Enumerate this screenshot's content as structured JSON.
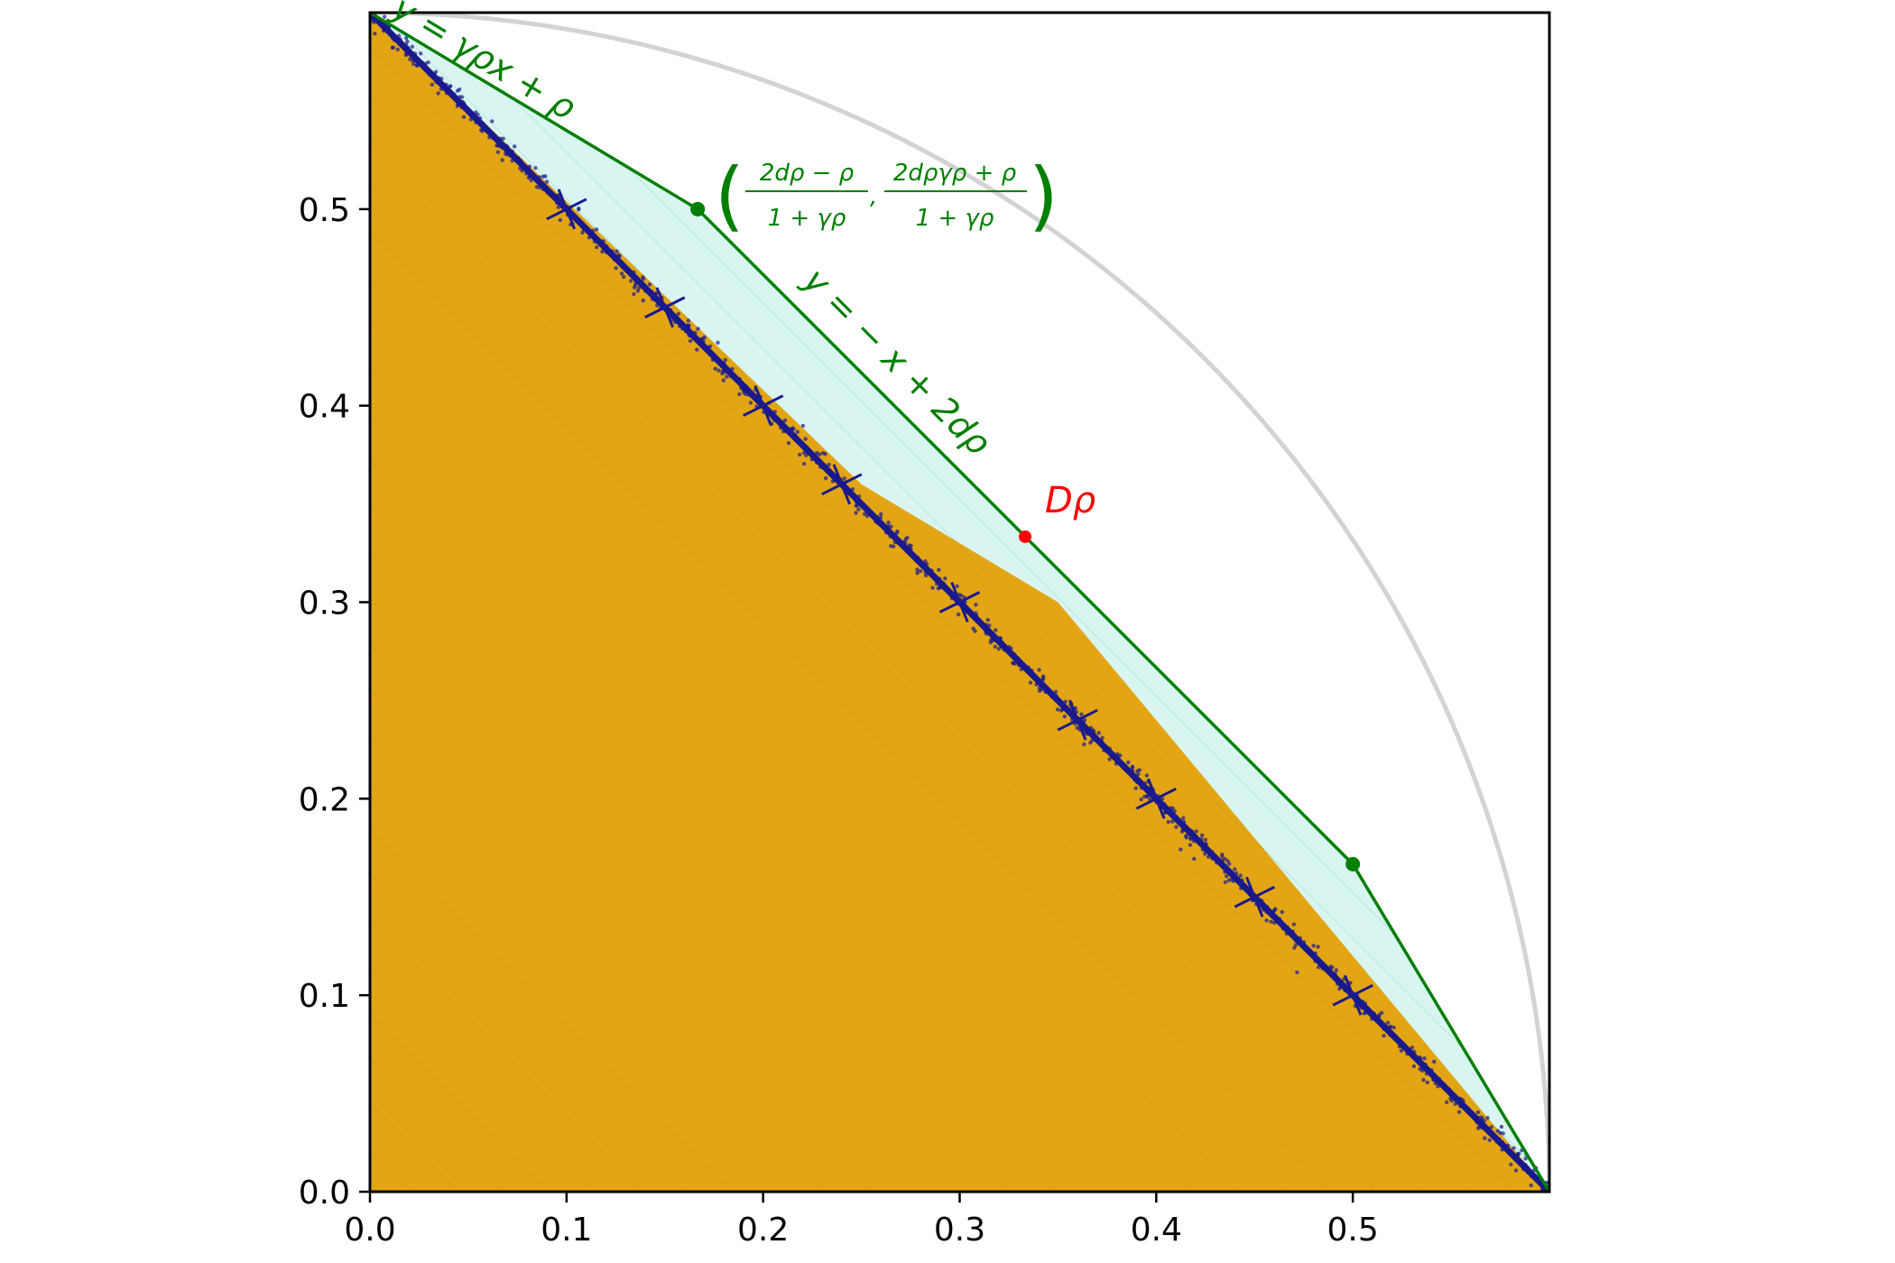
{
  "chart_data": {
    "type": "scatter",
    "title": "",
    "xlabel": "",
    "ylabel": "",
    "xlim": [
      0,
      0.6
    ],
    "ylim": [
      0,
      0.6
    ],
    "grid": false,
    "x_ticks": [
      "0.0",
      "0.1",
      "0.2",
      "0.3",
      "0.4",
      "0.5"
    ],
    "y_ticks": [
      "0.0",
      "0.1",
      "0.2",
      "0.3",
      "0.4",
      "0.5"
    ],
    "reference_arc": {
      "shape": "quarter circle",
      "radius": 0.6,
      "center": [
        0,
        0
      ],
      "color": "#d3d3d3"
    },
    "feasible_region_vertices": [
      [
        0,
        0.6
      ],
      [
        0.25,
        0.36
      ],
      [
        0.35,
        0.3
      ],
      [
        0.6,
        0
      ],
      [
        0,
        0
      ]
    ],
    "feasible_region_color": "#e3a514",
    "light_region_color": "#d9f5f2",
    "upper_bound_polyline": [
      [
        0,
        0.6
      ],
      [
        0.1667,
        0.5
      ],
      [
        0.5,
        0.1667
      ],
      [
        0.6,
        0
      ]
    ],
    "upper_bound_color": "#007f00",
    "bound_points": [
      [
        0.1667,
        0.5
      ],
      [
        0.5,
        0.1667
      ]
    ],
    "scatter": {
      "color": "#1a1a8c",
      "main_line": [
        [
          0,
          0.6
        ],
        [
          0.6,
          0
        ]
      ],
      "star_centers": [
        [
          0.1,
          0.5
        ],
        [
          0.15,
          0.45
        ],
        [
          0.2,
          0.4
        ],
        [
          0.24,
          0.36
        ],
        [
          0.3,
          0.3
        ],
        [
          0.36,
          0.24
        ],
        [
          0.4,
          0.2
        ],
        [
          0.45,
          0.15
        ],
        [
          0.5,
          0.1
        ]
      ]
    },
    "d_rho_point": {
      "x": 0.3333,
      "y": 0.3333,
      "color": "#ff0000"
    },
    "annotations": {
      "line1": "y = γρx + ρ",
      "line2": "y = − x + 2dρ",
      "point_label": "Dρ",
      "coord_x_numerator": "2dρ − ρ",
      "coord_x_denominator": "1 + γρ",
      "coord_y_numerator": "2dργρ + ρ",
      "coord_y_denominator": "1 + γρ",
      "paren_open": "(",
      "paren_close": ")",
      "comma": ","
    }
  }
}
